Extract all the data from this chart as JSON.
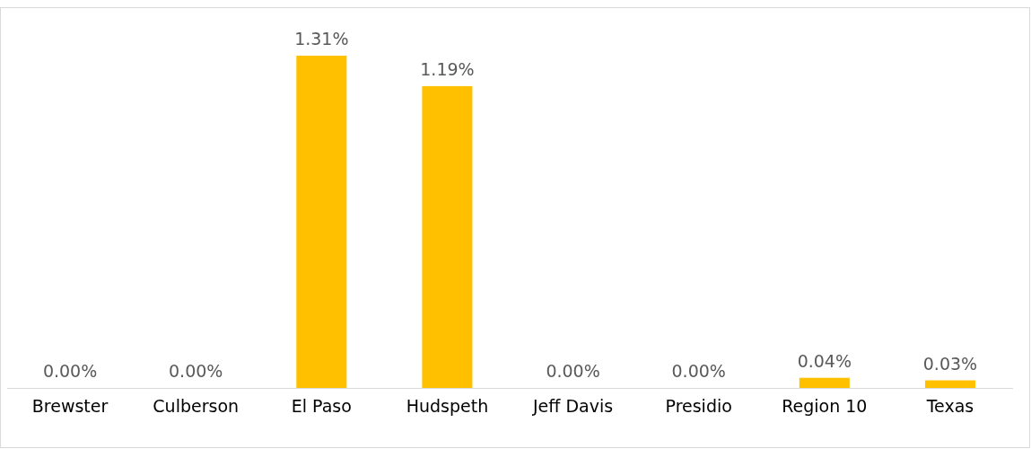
{
  "chart_data": {
    "type": "bar",
    "categories": [
      "Brewster",
      "Culberson",
      "El Paso",
      "Hudspeth",
      "Jeff Davis",
      "Presidio",
      "Region 10",
      "Texas"
    ],
    "values": [
      0,
      0,
      1.31,
      1.19,
      0,
      0,
      0.04,
      0.03
    ],
    "value_labels": [
      "0.00%",
      "0.00%",
      "1.31%",
      "1.19%",
      "0.00%",
      "0.00%",
      "0.04%",
      "0.03%"
    ],
    "color": "#ffc000"
  }
}
